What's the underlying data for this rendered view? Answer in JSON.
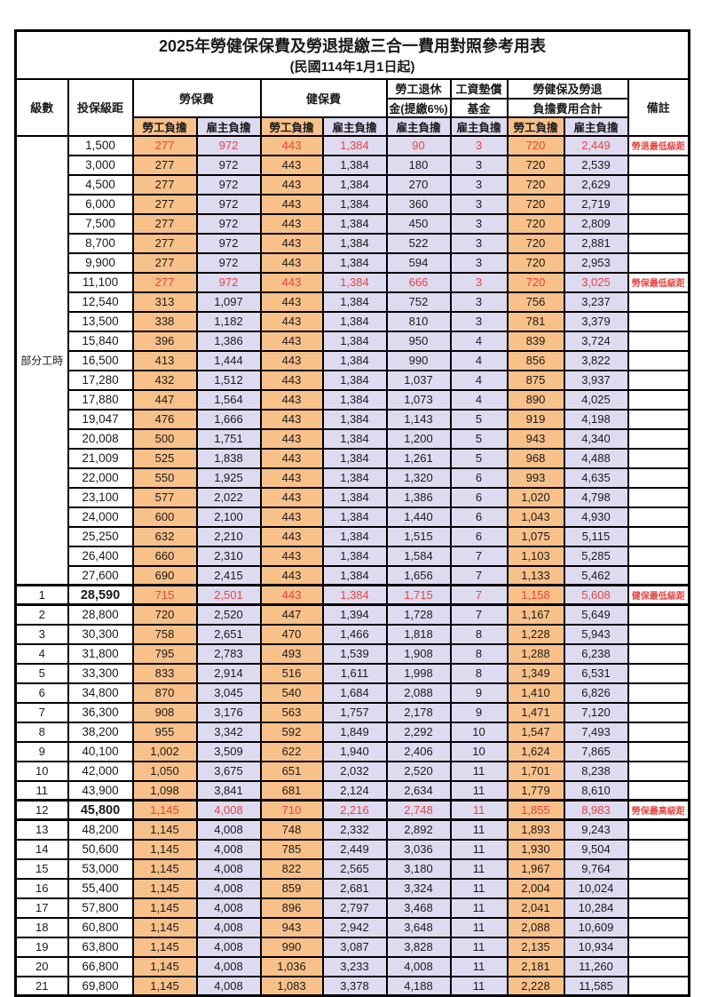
{
  "table": {
    "title": "2025年勞健保保費及勞退提繳三合一費用對照參考用表",
    "subtitle": "(民國114年1月1日起)",
    "headers": {
      "level": "級數",
      "salary_bracket": "投保級距",
      "labor_insurance": "勞保費",
      "health_insurance": "健保費",
      "pension_line1": "勞工退休",
      "pension_line2": "金(提繳6%)",
      "wage_fund_line1": "工資墊償",
      "wage_fund_line2": "基金",
      "total_line1": "勞健保及勞退",
      "total_line2": "負擔費用合計",
      "remarks": "備註",
      "employee_share": "勞工負擔",
      "employer_share": "雇主負擔"
    },
    "group_label": "部分工時",
    "group_rows": 23,
    "colors": {
      "employee_bg": "#F8C189",
      "employer_bg": "#DEDBF1",
      "highlight_text": "#E8433F"
    },
    "rows": [
      {
        "level": "",
        "salary": "1,500",
        "labor_employee": "277",
        "labor_employer": "972",
        "health_employee": "443",
        "health_employer": "1,384",
        "pension_employer": "90",
        "fund_employer": "3",
        "total_employee": "720",
        "total_employer": "2,449",
        "remark": "勞退最低級距",
        "highlight": true,
        "thick": false
      },
      {
        "level": "",
        "salary": "3,000",
        "labor_employee": "277",
        "labor_employer": "972",
        "health_employee": "443",
        "health_employer": "1,384",
        "pension_employer": "180",
        "fund_employer": "3",
        "total_employee": "720",
        "total_employer": "2,539",
        "remark": "",
        "highlight": false,
        "thick": false
      },
      {
        "level": "",
        "salary": "4,500",
        "labor_employee": "277",
        "labor_employer": "972",
        "health_employee": "443",
        "health_employer": "1,384",
        "pension_employer": "270",
        "fund_employer": "3",
        "total_employee": "720",
        "total_employer": "2,629",
        "remark": "",
        "highlight": false,
        "thick": false
      },
      {
        "level": "",
        "salary": "6,000",
        "labor_employee": "277",
        "labor_employer": "972",
        "health_employee": "443",
        "health_employer": "1,384",
        "pension_employer": "360",
        "fund_employer": "3",
        "total_employee": "720",
        "total_employer": "2,719",
        "remark": "",
        "highlight": false,
        "thick": false
      },
      {
        "level": "",
        "salary": "7,500",
        "labor_employee": "277",
        "labor_employer": "972",
        "health_employee": "443",
        "health_employer": "1,384",
        "pension_employer": "450",
        "fund_employer": "3",
        "total_employee": "720",
        "total_employer": "2,809",
        "remark": "",
        "highlight": false,
        "thick": false
      },
      {
        "level": "",
        "salary": "8,700",
        "labor_employee": "277",
        "labor_employer": "972",
        "health_employee": "443",
        "health_employer": "1,384",
        "pension_employer": "522",
        "fund_employer": "3",
        "total_employee": "720",
        "total_employer": "2,881",
        "remark": "",
        "highlight": false,
        "thick": false
      },
      {
        "level": "",
        "salary": "9,900",
        "labor_employee": "277",
        "labor_employer": "972",
        "health_employee": "443",
        "health_employer": "1,384",
        "pension_employer": "594",
        "fund_employer": "3",
        "total_employee": "720",
        "total_employer": "2,953",
        "remark": "",
        "highlight": false,
        "thick": false
      },
      {
        "level": "",
        "salary": "11,100",
        "labor_employee": "277",
        "labor_employer": "972",
        "health_employee": "443",
        "health_employer": "1,384",
        "pension_employer": "666",
        "fund_employer": "3",
        "total_employee": "720",
        "total_employer": "3,025",
        "remark": "勞保最低級距",
        "highlight": true,
        "thick": false
      },
      {
        "level": "",
        "salary": "12,540",
        "labor_employee": "313",
        "labor_employer": "1,097",
        "health_employee": "443",
        "health_employer": "1,384",
        "pension_employer": "752",
        "fund_employer": "3",
        "total_employee": "756",
        "total_employer": "3,237",
        "remark": "",
        "highlight": false,
        "thick": false
      },
      {
        "level": "",
        "salary": "13,500",
        "labor_employee": "338",
        "labor_employer": "1,182",
        "health_employee": "443",
        "health_employer": "1,384",
        "pension_employer": "810",
        "fund_employer": "3",
        "total_employee": "781",
        "total_employer": "3,379",
        "remark": "",
        "highlight": false,
        "thick": false
      },
      {
        "level": "",
        "salary": "15,840",
        "labor_employee": "396",
        "labor_employer": "1,386",
        "health_employee": "443",
        "health_employer": "1,384",
        "pension_employer": "950",
        "fund_employer": "4",
        "total_employee": "839",
        "total_employer": "3,724",
        "remark": "",
        "highlight": false,
        "thick": false
      },
      {
        "level": "",
        "salary": "16,500",
        "labor_employee": "413",
        "labor_employer": "1,444",
        "health_employee": "443",
        "health_employer": "1,384",
        "pension_employer": "990",
        "fund_employer": "4",
        "total_employee": "856",
        "total_employer": "3,822",
        "remark": "",
        "highlight": false,
        "thick": false
      },
      {
        "level": "",
        "salary": "17,280",
        "labor_employee": "432",
        "labor_employer": "1,512",
        "health_employee": "443",
        "health_employer": "1,384",
        "pension_employer": "1,037",
        "fund_employer": "4",
        "total_employee": "875",
        "total_employer": "3,937",
        "remark": "",
        "highlight": false,
        "thick": false
      },
      {
        "level": "",
        "salary": "17,880",
        "labor_employee": "447",
        "labor_employer": "1,564",
        "health_employee": "443",
        "health_employer": "1,384",
        "pension_employer": "1,073",
        "fund_employer": "4",
        "total_employee": "890",
        "total_employer": "4,025",
        "remark": "",
        "highlight": false,
        "thick": false
      },
      {
        "level": "",
        "salary": "19,047",
        "labor_employee": "476",
        "labor_employer": "1,666",
        "health_employee": "443",
        "health_employer": "1,384",
        "pension_employer": "1,143",
        "fund_employer": "5",
        "total_employee": "919",
        "total_employer": "4,198",
        "remark": "",
        "highlight": false,
        "thick": false
      },
      {
        "level": "",
        "salary": "20,008",
        "labor_employee": "500",
        "labor_employer": "1,751",
        "health_employee": "443",
        "health_employer": "1,384",
        "pension_employer": "1,200",
        "fund_employer": "5",
        "total_employee": "943",
        "total_employer": "4,340",
        "remark": "",
        "highlight": false,
        "thick": false
      },
      {
        "level": "",
        "salary": "21,009",
        "labor_employee": "525",
        "labor_employer": "1,838",
        "health_employee": "443",
        "health_employer": "1,384",
        "pension_employer": "1,261",
        "fund_employer": "5",
        "total_employee": "968",
        "total_employer": "4,488",
        "remark": "",
        "highlight": false,
        "thick": false
      },
      {
        "level": "",
        "salary": "22,000",
        "labor_employee": "550",
        "labor_employer": "1,925",
        "health_employee": "443",
        "health_employer": "1,384",
        "pension_employer": "1,320",
        "fund_employer": "6",
        "total_employee": "993",
        "total_employer": "4,635",
        "remark": "",
        "highlight": false,
        "thick": false
      },
      {
        "level": "",
        "salary": "23,100",
        "labor_employee": "577",
        "labor_employer": "2,022",
        "health_employee": "443",
        "health_employer": "1,384",
        "pension_employer": "1,386",
        "fund_employer": "6",
        "total_employee": "1,020",
        "total_employer": "4,798",
        "remark": "",
        "highlight": false,
        "thick": false
      },
      {
        "level": "",
        "salary": "24,000",
        "labor_employee": "600",
        "labor_employer": "2,100",
        "health_employee": "443",
        "health_employer": "1,384",
        "pension_employer": "1,440",
        "fund_employer": "6",
        "total_employee": "1,043",
        "total_employer": "4,930",
        "remark": "",
        "highlight": false,
        "thick": false
      },
      {
        "level": "",
        "salary": "25,250",
        "labor_employee": "632",
        "labor_employer": "2,210",
        "health_employee": "443",
        "health_employer": "1,384",
        "pension_employer": "1,515",
        "fund_employer": "6",
        "total_employee": "1,075",
        "total_employer": "5,115",
        "remark": "",
        "highlight": false,
        "thick": false
      },
      {
        "level": "",
        "salary": "26,400",
        "labor_employee": "660",
        "labor_employer": "2,310",
        "health_employee": "443",
        "health_employer": "1,384",
        "pension_employer": "1,584",
        "fund_employer": "7",
        "total_employee": "1,103",
        "total_employer": "5,285",
        "remark": "",
        "highlight": false,
        "thick": false
      },
      {
        "level": "",
        "salary": "27,600",
        "labor_employee": "690",
        "labor_employer": "2,415",
        "health_employee": "443",
        "health_employer": "1,384",
        "pension_employer": "1,656",
        "fund_employer": "7",
        "total_employee": "1,133",
        "total_employer": "5,462",
        "remark": "",
        "highlight": false,
        "thick": false
      },
      {
        "level": "1",
        "salary": "28,590",
        "labor_employee": "715",
        "labor_employer": "2,501",
        "health_employee": "443",
        "health_employer": "1,384",
        "pension_employer": "1,715",
        "fund_employer": "7",
        "total_employee": "1,158",
        "total_employer": "5,608",
        "remark": "健保最低級距",
        "highlight": true,
        "thick": true
      },
      {
        "level": "2",
        "salary": "28,800",
        "labor_employee": "720",
        "labor_employer": "2,520",
        "health_employee": "447",
        "health_employer": "1,394",
        "pension_employer": "1,728",
        "fund_employer": "7",
        "total_employee": "1,167",
        "total_employer": "5,649",
        "remark": "",
        "highlight": false,
        "thick": false
      },
      {
        "level": "3",
        "salary": "30,300",
        "labor_employee": "758",
        "labor_employer": "2,651",
        "health_employee": "470",
        "health_employer": "1,466",
        "pension_employer": "1,818",
        "fund_employer": "8",
        "total_employee": "1,228",
        "total_employer": "5,943",
        "remark": "",
        "highlight": false,
        "thick": false
      },
      {
        "level": "4",
        "salary": "31,800",
        "labor_employee": "795",
        "labor_employer": "2,783",
        "health_employee": "493",
        "health_employer": "1,539",
        "pension_employer": "1,908",
        "fund_employer": "8",
        "total_employee": "1,288",
        "total_employer": "6,238",
        "remark": "",
        "highlight": false,
        "thick": false
      },
      {
        "level": "5",
        "salary": "33,300",
        "labor_employee": "833",
        "labor_employer": "2,914",
        "health_employee": "516",
        "health_employer": "1,611",
        "pension_employer": "1,998",
        "fund_employer": "8",
        "total_employee": "1,349",
        "total_employer": "6,531",
        "remark": "",
        "highlight": false,
        "thick": false
      },
      {
        "level": "6",
        "salary": "34,800",
        "labor_employee": "870",
        "labor_employer": "3,045",
        "health_employee": "540",
        "health_employer": "1,684",
        "pension_employer": "2,088",
        "fund_employer": "9",
        "total_employee": "1,410",
        "total_employer": "6,826",
        "remark": "",
        "highlight": false,
        "thick": false
      },
      {
        "level": "7",
        "salary": "36,300",
        "labor_employee": "908",
        "labor_employer": "3,176",
        "health_employee": "563",
        "health_employer": "1,757",
        "pension_employer": "2,178",
        "fund_employer": "9",
        "total_employee": "1,471",
        "total_employer": "7,120",
        "remark": "",
        "highlight": false,
        "thick": false
      },
      {
        "level": "8",
        "salary": "38,200",
        "labor_employee": "955",
        "labor_employer": "3,342",
        "health_employee": "592",
        "health_employer": "1,849",
        "pension_employer": "2,292",
        "fund_employer": "10",
        "total_employee": "1,547",
        "total_employer": "7,493",
        "remark": "",
        "highlight": false,
        "thick": false
      },
      {
        "level": "9",
        "salary": "40,100",
        "labor_employee": "1,002",
        "labor_employer": "3,509",
        "health_employee": "622",
        "health_employer": "1,940",
        "pension_employer": "2,406",
        "fund_employer": "10",
        "total_employee": "1,624",
        "total_employer": "7,865",
        "remark": "",
        "highlight": false,
        "thick": false
      },
      {
        "level": "10",
        "salary": "42,000",
        "labor_employee": "1,050",
        "labor_employer": "3,675",
        "health_employee": "651",
        "health_employer": "2,032",
        "pension_employer": "2,520",
        "fund_employer": "11",
        "total_employee": "1,701",
        "total_employer": "8,238",
        "remark": "",
        "highlight": false,
        "thick": false
      },
      {
        "level": "11",
        "salary": "43,900",
        "labor_employee": "1,098",
        "labor_employer": "3,841",
        "health_employee": "681",
        "health_employer": "2,124",
        "pension_employer": "2,634",
        "fund_employer": "11",
        "total_employee": "1,779",
        "total_employer": "8,610",
        "remark": "",
        "highlight": false,
        "thick": false
      },
      {
        "level": "12",
        "salary": "45,800",
        "labor_employee": "1,145",
        "labor_employer": "4,008",
        "health_employee": "710",
        "health_employer": "2,216",
        "pension_employer": "2,748",
        "fund_employer": "11",
        "total_employee": "1,855",
        "total_employer": "8,983",
        "remark": "勞保最高級距",
        "highlight": true,
        "thick": true
      },
      {
        "level": "13",
        "salary": "48,200",
        "labor_employee": "1,145",
        "labor_employer": "4,008",
        "health_employee": "748",
        "health_employer": "2,332",
        "pension_employer": "2,892",
        "fund_employer": "11",
        "total_employee": "1,893",
        "total_employer": "9,243",
        "remark": "",
        "highlight": false,
        "thick": false
      },
      {
        "level": "14",
        "salary": "50,600",
        "labor_employee": "1,145",
        "labor_employer": "4,008",
        "health_employee": "785",
        "health_employer": "2,449",
        "pension_employer": "3,036",
        "fund_employer": "11",
        "total_employee": "1,930",
        "total_employer": "9,504",
        "remark": "",
        "highlight": false,
        "thick": false
      },
      {
        "level": "15",
        "salary": "53,000",
        "labor_employee": "1,145",
        "labor_employer": "4,008",
        "health_employee": "822",
        "health_employer": "2,565",
        "pension_employer": "3,180",
        "fund_employer": "11",
        "total_employee": "1,967",
        "total_employer": "9,764",
        "remark": "",
        "highlight": false,
        "thick": false
      },
      {
        "level": "16",
        "salary": "55,400",
        "labor_employee": "1,145",
        "labor_employer": "4,008",
        "health_employee": "859",
        "health_employer": "2,681",
        "pension_employer": "3,324",
        "fund_employer": "11",
        "total_employee": "2,004",
        "total_employer": "10,024",
        "remark": "",
        "highlight": false,
        "thick": false
      },
      {
        "level": "17",
        "salary": "57,800",
        "labor_employee": "1,145",
        "labor_employer": "4,008",
        "health_employee": "896",
        "health_employer": "2,797",
        "pension_employer": "3,468",
        "fund_employer": "11",
        "total_employee": "2,041",
        "total_employer": "10,284",
        "remark": "",
        "highlight": false,
        "thick": false
      },
      {
        "level": "18",
        "salary": "60,800",
        "labor_employee": "1,145",
        "labor_employer": "4,008",
        "health_employee": "943",
        "health_employer": "2,942",
        "pension_employer": "3,648",
        "fund_employer": "11",
        "total_employee": "2,088",
        "total_employer": "10,609",
        "remark": "",
        "highlight": false,
        "thick": false
      },
      {
        "level": "19",
        "salary": "63,800",
        "labor_employee": "1,145",
        "labor_employer": "4,008",
        "health_employee": "990",
        "health_employer": "3,087",
        "pension_employer": "3,828",
        "fund_employer": "11",
        "total_employee": "2,135",
        "total_employer": "10,934",
        "remark": "",
        "highlight": false,
        "thick": false
      },
      {
        "level": "20",
        "salary": "66,800",
        "labor_employee": "1,145",
        "labor_employer": "4,008",
        "health_employee": "1,036",
        "health_employer": "3,233",
        "pension_employer": "4,008",
        "fund_employer": "11",
        "total_employee": "2,181",
        "total_employer": "11,260",
        "remark": "",
        "highlight": false,
        "thick": false
      },
      {
        "level": "21",
        "salary": "69,800",
        "labor_employee": "1,145",
        "labor_employer": "4,008",
        "health_employee": "1,083",
        "health_employer": "3,378",
        "pension_employer": "4,188",
        "fund_employer": "11",
        "total_employee": "2,228",
        "total_employer": "11,585",
        "remark": "",
        "highlight": false,
        "thick": false
      }
    ]
  }
}
